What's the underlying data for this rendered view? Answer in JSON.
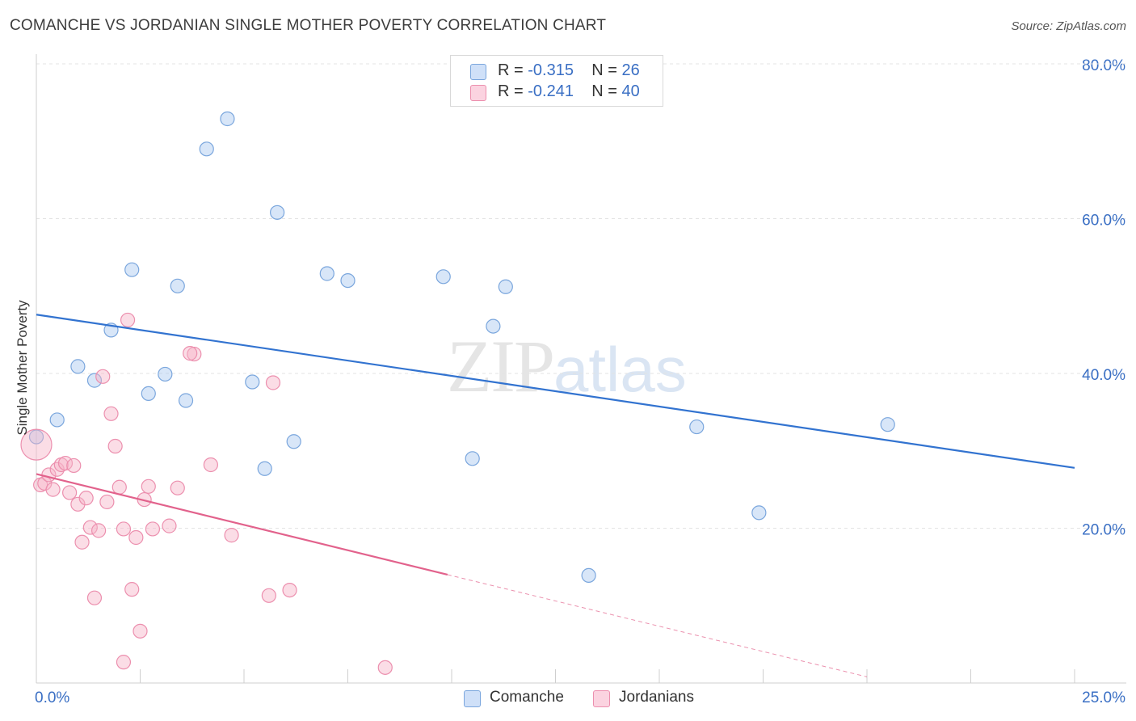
{
  "title": "COMANCHE VS JORDANIAN SINGLE MOTHER POVERTY CORRELATION CHART",
  "source": "Source: ZipAtlas.com",
  "watermark": {
    "zip": "ZIP",
    "atlas": "atlas"
  },
  "legend": {
    "rows": [
      {
        "r_label": "R = ",
        "r_value": "-0.315",
        "n_label": "N = ",
        "n_value": "26",
        "color": "#a9c8f0"
      },
      {
        "r_label": "R = ",
        "r_value": "-0.241",
        "n_label": "N = ",
        "n_value": "40",
        "color": "#f6b3c8"
      }
    ]
  },
  "bottom_legend": [
    {
      "label": "Comanche",
      "color": "#a9c8f0"
    },
    {
      "label": "Jordanians",
      "color": "#f6b3c8"
    }
  ],
  "chart_data": {
    "type": "scatter",
    "title": "COMANCHE VS JORDANIAN SINGLE MOTHER POVERTY CORRELATION CHART",
    "xlabel": "",
    "ylabel": "Single Mother Poverty",
    "xlim": [
      0,
      25
    ],
    "ylim": [
      0,
      80
    ],
    "x_tick_labels": [
      "0.0%",
      "25.0%"
    ],
    "y_ticks": [
      20,
      40,
      60,
      80
    ],
    "y_tick_labels": [
      "20.0%",
      "40.0%",
      "60.0%",
      "80.0%"
    ],
    "grid": true,
    "series": [
      {
        "name": "Comanche",
        "color": "#a9c8f0",
        "stroke": "#7aa6dd",
        "line_color": "#3273d0",
        "trend": {
          "x": [
            0,
            25
          ],
          "y": [
            47.6,
            27.8
          ]
        },
        "points": [
          [
            0.5,
            34.0
          ],
          [
            0.0,
            31.8
          ],
          [
            1.0,
            40.9
          ],
          [
            1.4,
            39.1
          ],
          [
            1.8,
            45.6
          ],
          [
            2.3,
            53.4
          ],
          [
            2.7,
            37.4
          ],
          [
            3.1,
            39.9
          ],
          [
            3.4,
            51.3
          ],
          [
            3.6,
            36.5
          ],
          [
            4.1,
            69.0
          ],
          [
            4.6,
            72.9
          ],
          [
            5.2,
            38.9
          ],
          [
            5.5,
            27.7
          ],
          [
            5.8,
            60.8
          ],
          [
            6.2,
            31.2
          ],
          [
            7.0,
            52.9
          ],
          [
            7.5,
            52.0
          ],
          [
            9.8,
            52.5
          ],
          [
            10.5,
            29.0
          ],
          [
            11.0,
            46.1
          ],
          [
            11.3,
            51.2
          ],
          [
            13.3,
            13.9
          ],
          [
            15.9,
            33.1
          ],
          [
            17.4,
            22.0
          ],
          [
            20.5,
            33.4
          ]
        ]
      },
      {
        "name": "Jordanians",
        "color": "#f6b3c8",
        "stroke": "#ec8fae",
        "line_color": "#e2628c",
        "trend": {
          "x": [
            0,
            9.9
          ],
          "y": [
            27.0,
            14.0
          ]
        },
        "trend_dashed": {
          "x": [
            9.9,
            20
          ],
          "y": [
            14.0,
            0.8
          ]
        },
        "points": [
          [
            0.0,
            30.8
          ],
          [
            0.1,
            25.6
          ],
          [
            0.2,
            25.8
          ],
          [
            0.3,
            26.9
          ],
          [
            0.4,
            25.0
          ],
          [
            0.5,
            27.6
          ],
          [
            0.6,
            28.2
          ],
          [
            0.7,
            28.4
          ],
          [
            0.8,
            24.6
          ],
          [
            0.9,
            28.1
          ],
          [
            1.0,
            23.1
          ],
          [
            1.1,
            18.2
          ],
          [
            1.2,
            23.9
          ],
          [
            1.3,
            20.1
          ],
          [
            1.4,
            11.0
          ],
          [
            1.5,
            19.7
          ],
          [
            1.6,
            39.6
          ],
          [
            1.7,
            23.4
          ],
          [
            1.8,
            34.8
          ],
          [
            1.9,
            30.6
          ],
          [
            2.0,
            25.3
          ],
          [
            2.1,
            2.7
          ],
          [
            2.1,
            19.9
          ],
          [
            2.2,
            46.9
          ],
          [
            2.3,
            12.1
          ],
          [
            2.4,
            18.8
          ],
          [
            2.5,
            6.7
          ],
          [
            2.6,
            23.7
          ],
          [
            2.7,
            25.4
          ],
          [
            2.8,
            19.9
          ],
          [
            3.4,
            25.2
          ],
          [
            3.2,
            20.3
          ],
          [
            3.8,
            42.5
          ],
          [
            3.7,
            42.6
          ],
          [
            4.2,
            28.2
          ],
          [
            4.7,
            19.1
          ],
          [
            5.6,
            11.3
          ],
          [
            5.7,
            38.8
          ],
          [
            6.1,
            12.0
          ],
          [
            8.4,
            2.0
          ]
        ]
      }
    ]
  }
}
